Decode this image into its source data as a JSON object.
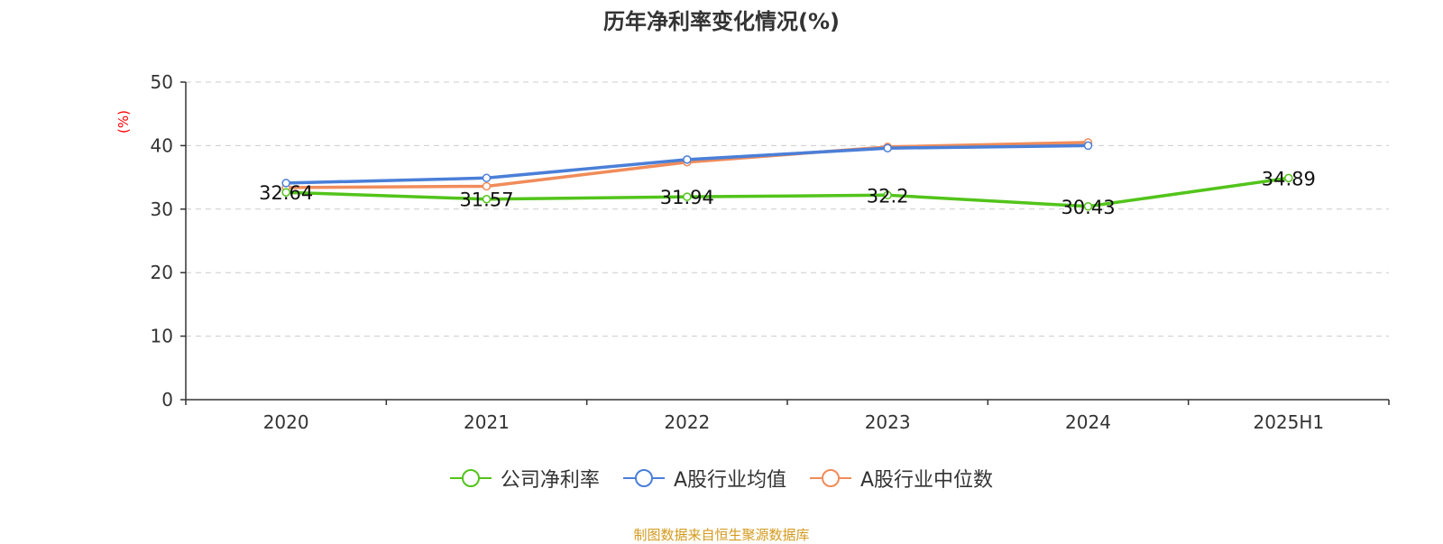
{
  "chart_data": {
    "type": "line",
    "title": "历年净利率变化情况(%)",
    "ylabel": "(%)",
    "xlabel": "",
    "categories": [
      "2020",
      "2021",
      "2022",
      "2023",
      "2024",
      "2025H1"
    ],
    "ylim": [
      0,
      50
    ],
    "yticks": [
      0,
      10,
      20,
      30,
      40,
      50
    ],
    "grid": true,
    "legend_position": "bottom",
    "series": [
      {
        "name": "公司净利率",
        "color": "#52c41a",
        "values": [
          32.64,
          31.57,
          31.94,
          32.2,
          30.43,
          34.89
        ],
        "show_labels": true
      },
      {
        "name": "A股行业均值",
        "color": "#4a7fd8",
        "values": [
          34.1,
          34.9,
          37.8,
          39.6,
          40.0,
          null
        ],
        "show_labels": false
      },
      {
        "name": "A股行业中位数",
        "color": "#f08c5a",
        "values": [
          33.4,
          33.6,
          37.4,
          39.8,
          40.5,
          null
        ],
        "show_labels": false
      }
    ]
  },
  "source_note": "制图数据来自恒生聚源数据库"
}
